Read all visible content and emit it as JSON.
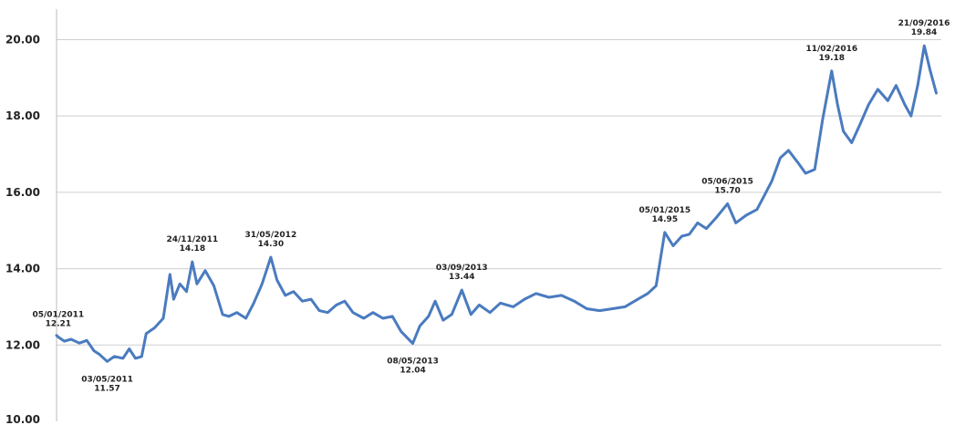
{
  "chart_data": {
    "type": "line",
    "title": "",
    "xlabel": "",
    "ylabel": "",
    "ylim": [
      10,
      20.8
    ],
    "xlim": [
      "2011-01-01",
      "2016-11-01"
    ],
    "grid": "horizontal",
    "yticks": [
      "10.00",
      "12.00",
      "14.00",
      "16.00",
      "18.00",
      "20.00"
    ],
    "line_color": "#4a7bbf",
    "series": [
      {
        "points": [
          [
            "2011-01-01",
            12.25
          ],
          [
            "2011-01-05",
            12.21
          ],
          [
            "2011-01-20",
            12.1
          ],
          [
            "2011-02-05",
            12.15
          ],
          [
            "2011-02-25",
            12.05
          ],
          [
            "2011-03-15",
            12.12
          ],
          [
            "2011-04-01",
            11.85
          ],
          [
            "2011-04-15",
            11.75
          ],
          [
            "2011-05-03",
            11.57
          ],
          [
            "2011-05-20",
            11.7
          ],
          [
            "2011-06-10",
            11.65
          ],
          [
            "2011-06-25",
            11.9
          ],
          [
            "2011-07-10",
            11.65
          ],
          [
            "2011-07-25",
            11.7
          ],
          [
            "2011-08-05",
            12.3
          ],
          [
            "2011-08-25",
            12.45
          ],
          [
            "2011-09-15",
            12.7
          ],
          [
            "2011-10-01",
            13.85
          ],
          [
            "2011-10-10",
            13.2
          ],
          [
            "2011-10-25",
            13.6
          ],
          [
            "2011-11-10",
            13.4
          ],
          [
            "2011-11-24",
            14.18
          ],
          [
            "2011-12-05",
            13.6
          ],
          [
            "2011-12-25",
            13.95
          ],
          [
            "2012-01-15",
            13.55
          ],
          [
            "2012-02-05",
            12.8
          ],
          [
            "2012-02-20",
            12.75
          ],
          [
            "2012-03-10",
            12.85
          ],
          [
            "2012-04-01",
            12.7
          ],
          [
            "2012-04-20",
            13.1
          ],
          [
            "2012-05-10",
            13.6
          ],
          [
            "2012-05-31",
            14.3
          ],
          [
            "2012-06-15",
            13.7
          ],
          [
            "2012-07-05",
            13.3
          ],
          [
            "2012-07-25",
            13.4
          ],
          [
            "2012-08-15",
            13.15
          ],
          [
            "2012-09-05",
            13.2
          ],
          [
            "2012-09-25",
            12.9
          ],
          [
            "2012-10-15",
            12.85
          ],
          [
            "2012-11-05",
            13.05
          ],
          [
            "2012-11-25",
            13.15
          ],
          [
            "2012-12-15",
            12.85
          ],
          [
            "2013-01-10",
            12.7
          ],
          [
            "2013-02-01",
            12.85
          ],
          [
            "2013-02-25",
            12.7
          ],
          [
            "2013-03-20",
            12.75
          ],
          [
            "2013-04-10",
            12.35
          ],
          [
            "2013-05-08",
            12.04
          ],
          [
            "2013-05-25",
            12.5
          ],
          [
            "2013-06-15",
            12.75
          ],
          [
            "2013-07-01",
            13.15
          ],
          [
            "2013-07-20",
            12.65
          ],
          [
            "2013-08-10",
            12.8
          ],
          [
            "2013-09-03",
            13.44
          ],
          [
            "2013-09-25",
            12.8
          ],
          [
            "2013-10-15",
            13.05
          ],
          [
            "2013-11-10",
            12.85
          ],
          [
            "2013-12-05",
            13.1
          ],
          [
            "2014-01-05",
            13.0
          ],
          [
            "2014-02-01",
            13.2
          ],
          [
            "2014-03-01",
            13.35
          ],
          [
            "2014-04-01",
            13.25
          ],
          [
            "2014-05-01",
            13.3
          ],
          [
            "2014-06-01",
            13.15
          ],
          [
            "2014-07-01",
            12.95
          ],
          [
            "2014-08-01",
            12.9
          ],
          [
            "2014-09-01",
            12.95
          ],
          [
            "2014-10-01",
            13.0
          ],
          [
            "2014-11-01",
            13.2
          ],
          [
            "2014-11-25",
            13.35
          ],
          [
            "2014-12-15",
            13.55
          ],
          [
            "2015-01-05",
            14.95
          ],
          [
            "2015-01-25",
            14.6
          ],
          [
            "2015-02-15",
            14.85
          ],
          [
            "2015-03-05",
            14.9
          ],
          [
            "2015-03-25",
            15.2
          ],
          [
            "2015-04-15",
            15.05
          ],
          [
            "2015-05-10",
            15.35
          ],
          [
            "2015-06-05",
            15.7
          ],
          [
            "2015-06-25",
            15.2
          ],
          [
            "2015-07-20",
            15.4
          ],
          [
            "2015-08-15",
            15.55
          ],
          [
            "2015-09-01",
            15.9
          ],
          [
            "2015-09-20",
            16.3
          ],
          [
            "2015-10-10",
            16.9
          ],
          [
            "2015-10-30",
            17.1
          ],
          [
            "2015-11-20",
            16.8
          ],
          [
            "2015-12-10",
            16.5
          ],
          [
            "2016-01-01",
            16.6
          ],
          [
            "2016-01-20",
            17.9
          ],
          [
            "2016-02-11",
            19.18
          ],
          [
            "2016-02-25",
            18.3
          ],
          [
            "2016-03-10",
            17.6
          ],
          [
            "2016-03-30",
            17.3
          ],
          [
            "2016-04-20",
            17.8
          ],
          [
            "2016-05-10",
            18.3
          ],
          [
            "2016-06-01",
            18.7
          ],
          [
            "2016-06-25",
            18.4
          ],
          [
            "2016-07-15",
            18.8
          ],
          [
            "2016-08-05",
            18.3
          ],
          [
            "2016-08-20",
            18.0
          ],
          [
            "2016-09-05",
            18.8
          ],
          [
            "2016-09-21",
            19.84
          ],
          [
            "2016-10-05",
            19.2
          ],
          [
            "2016-10-20",
            18.6
          ]
        ]
      }
    ],
    "annotations": [
      {
        "date": "05/01/2011",
        "value": "12.21",
        "x": "2011-01-05",
        "position": "above"
      },
      {
        "date": "03/05/2011",
        "value": "11.57",
        "x": "2011-05-03",
        "position": "below"
      },
      {
        "date": "24/11/2011",
        "value": "14.18",
        "x": "2011-11-24",
        "position": "above"
      },
      {
        "date": "31/05/2012",
        "value": "14.30",
        "x": "2012-05-31",
        "position": "above"
      },
      {
        "date": "08/05/2013",
        "value": "12.04",
        "x": "2013-05-08",
        "position": "below"
      },
      {
        "date": "03/09/2013",
        "value": "13.44",
        "x": "2013-09-03",
        "position": "above"
      },
      {
        "date": "05/01/2015",
        "value": "14.95",
        "x": "2015-01-05",
        "position": "above"
      },
      {
        "date": "05/06/2015",
        "value": "15.70",
        "x": "2015-06-05",
        "position": "above"
      },
      {
        "date": "11/02/2016",
        "value": "19.18",
        "x": "2016-02-11",
        "position": "above"
      },
      {
        "date": "21/09/2016",
        "value": "19.84",
        "x": "2016-09-21",
        "position": "above"
      }
    ]
  }
}
